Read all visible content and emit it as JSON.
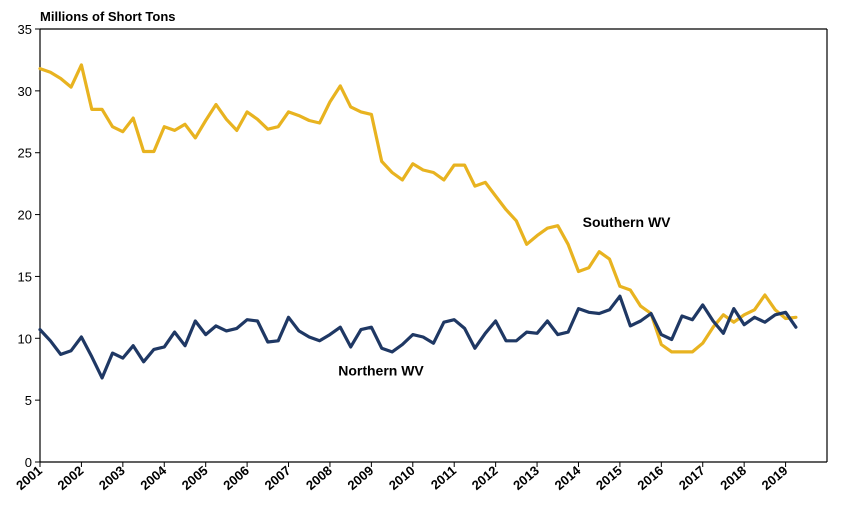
{
  "chart_data": {
    "type": "line",
    "title": "",
    "ylabel": "Millions of Short Tons",
    "xlabel": "",
    "ylim": [
      0,
      35
    ],
    "yticks": [
      0,
      5,
      10,
      15,
      20,
      25,
      30,
      35
    ],
    "xlim": [
      2001,
      2020
    ],
    "xticks": [
      "2001",
      "2002",
      "2003",
      "2004",
      "2005",
      "2006",
      "2007",
      "2008",
      "2009",
      "2010",
      "2011",
      "2012",
      "2013",
      "2014",
      "2015",
      "2016",
      "2017",
      "2018",
      "2019"
    ],
    "grid": false,
    "legend": "none (inline series labels)",
    "series": [
      {
        "name": "Southern WV",
        "color": "#E8B320",
        "x": [
          2001.0,
          2001.25,
          2001.5,
          2001.75,
          2002.0,
          2002.25,
          2002.5,
          2002.75,
          2003.0,
          2003.25,
          2003.5,
          2003.75,
          2004.0,
          2004.25,
          2004.5,
          2004.75,
          2005.0,
          2005.25,
          2005.5,
          2005.75,
          2006.0,
          2006.25,
          2006.5,
          2006.75,
          2007.0,
          2007.25,
          2007.5,
          2007.75,
          2008.0,
          2008.25,
          2008.5,
          2008.75,
          2009.0,
          2009.25,
          2009.5,
          2009.75,
          2010.0,
          2010.25,
          2010.5,
          2010.75,
          2011.0,
          2011.25,
          2011.5,
          2011.75,
          2012.0,
          2012.25,
          2012.5,
          2012.75,
          2013.0,
          2013.25,
          2013.5,
          2013.75,
          2014.0,
          2014.25,
          2014.5,
          2014.75,
          2015.0,
          2015.25,
          2015.5,
          2015.75,
          2016.0,
          2016.25,
          2016.5,
          2016.75,
          2017.0,
          2017.25,
          2017.5,
          2017.75,
          2018.0,
          2018.25,
          2018.5,
          2018.75,
          2019.0,
          2019.25
        ],
        "values": [
          31.8,
          31.5,
          31.0,
          30.3,
          32.1,
          28.5,
          28.5,
          27.1,
          26.7,
          27.8,
          25.1,
          25.1,
          27.1,
          26.8,
          27.3,
          26.2,
          27.6,
          28.9,
          27.7,
          26.8,
          28.3,
          27.7,
          26.9,
          27.1,
          28.3,
          28.0,
          27.6,
          27.4,
          29.1,
          30.4,
          28.7,
          28.3,
          28.1,
          24.3,
          23.4,
          22.8,
          24.1,
          23.6,
          23.4,
          22.8,
          24.0,
          24.0,
          22.3,
          22.6,
          21.5,
          20.4,
          19.5,
          17.6,
          18.3,
          18.9,
          19.1,
          17.6,
          15.4,
          15.7,
          17.0,
          16.4,
          14.2,
          13.9,
          12.6,
          12.0,
          9.5,
          8.9,
          8.9,
          8.9,
          9.6,
          10.9,
          11.9,
          11.3,
          11.9,
          12.3,
          13.5,
          12.3,
          11.6,
          11.7
        ]
      },
      {
        "name": "Northern WV",
        "color": "#1F3864",
        "x": [
          2001.0,
          2001.25,
          2001.5,
          2001.75,
          2002.0,
          2002.25,
          2002.5,
          2002.75,
          2003.0,
          2003.25,
          2003.5,
          2003.75,
          2004.0,
          2004.25,
          2004.5,
          2004.75,
          2005.0,
          2005.25,
          2005.5,
          2005.75,
          2006.0,
          2006.25,
          2006.5,
          2006.75,
          2007.0,
          2007.25,
          2007.5,
          2007.75,
          2008.0,
          2008.25,
          2008.5,
          2008.75,
          2009.0,
          2009.25,
          2009.5,
          2009.75,
          2010.0,
          2010.25,
          2010.5,
          2010.75,
          2011.0,
          2011.25,
          2011.5,
          2011.75,
          2012.0,
          2012.25,
          2012.5,
          2012.75,
          2013.0,
          2013.25,
          2013.5,
          2013.75,
          2014.0,
          2014.25,
          2014.5,
          2014.75,
          2015.0,
          2015.25,
          2015.5,
          2015.75,
          2016.0,
          2016.25,
          2016.5,
          2016.75,
          2017.0,
          2017.25,
          2017.5,
          2017.75,
          2018.0,
          2018.25,
          2018.5,
          2018.75,
          2019.0,
          2019.25
        ],
        "values": [
          10.7,
          9.8,
          8.7,
          9.0,
          10.1,
          8.5,
          6.8,
          8.8,
          8.4,
          9.4,
          8.1,
          9.1,
          9.3,
          10.5,
          9.4,
          11.4,
          10.3,
          11.0,
          10.6,
          10.8,
          11.5,
          11.4,
          9.7,
          9.8,
          11.7,
          10.6,
          10.1,
          9.8,
          10.3,
          10.9,
          9.3,
          10.7,
          10.9,
          9.2,
          8.9,
          9.5,
          10.3,
          10.1,
          9.6,
          11.3,
          11.5,
          10.8,
          9.2,
          10.4,
          11.4,
          9.8,
          9.8,
          10.5,
          10.4,
          11.4,
          10.3,
          10.5,
          12.4,
          12.1,
          12.0,
          12.3,
          13.4,
          11.0,
          11.4,
          12.0,
          10.3,
          9.9,
          11.8,
          11.5,
          12.7,
          11.4,
          10.4,
          12.4,
          11.1,
          11.7,
          11.3,
          11.9,
          12.1,
          10.9
        ]
      }
    ],
    "annotations": [
      {
        "text": "Southern WV",
        "x": 2014.1,
        "y": 19.0
      },
      {
        "text": "Northern WV",
        "x": 2008.2,
        "y": 7.0
      }
    ]
  }
}
